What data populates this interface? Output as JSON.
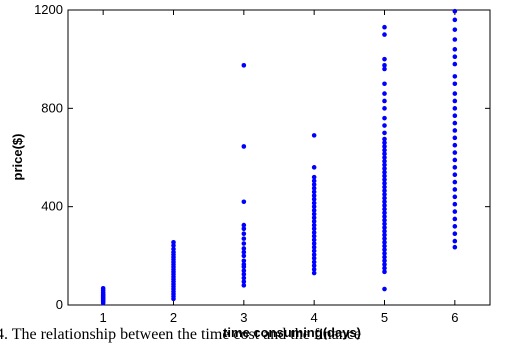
{
  "chart_data": {
    "type": "scatter",
    "xlabel": "time consuming(days)",
    "ylabel": "price($)",
    "xlim": [
      0.5,
      6.5
    ],
    "ylim": [
      0,
      1200
    ],
    "xticks": [
      1,
      2,
      3,
      4,
      5,
      6
    ],
    "yticks": [
      0,
      400,
      800,
      1200
    ],
    "grid": false,
    "color": "#0000ff",
    "series": [
      {
        "points": [
          [
            1,
            8
          ],
          [
            1,
            14
          ],
          [
            1,
            20
          ],
          [
            1,
            25
          ],
          [
            1,
            30
          ],
          [
            1,
            35
          ],
          [
            1,
            40
          ],
          [
            1,
            45
          ],
          [
            1,
            52
          ],
          [
            1,
            60
          ],
          [
            1,
            68
          ],
          [
            2,
            25
          ],
          [
            2,
            35
          ],
          [
            2,
            45
          ],
          [
            2,
            55
          ],
          [
            2,
            65
          ],
          [
            2,
            75
          ],
          [
            2,
            85
          ],
          [
            2,
            95
          ],
          [
            2,
            105
          ],
          [
            2,
            115
          ],
          [
            2,
            125
          ],
          [
            2,
            135
          ],
          [
            2,
            145
          ],
          [
            2,
            155
          ],
          [
            2,
            165
          ],
          [
            2,
            175
          ],
          [
            2,
            185
          ],
          [
            2,
            195
          ],
          [
            2,
            205
          ],
          [
            2,
            215
          ],
          [
            2,
            228
          ],
          [
            2,
            242
          ],
          [
            2,
            255
          ],
          [
            3,
            80
          ],
          [
            3,
            95
          ],
          [
            3,
            110
          ],
          [
            3,
            125
          ],
          [
            3,
            140
          ],
          [
            3,
            155
          ],
          [
            3,
            165
          ],
          [
            3,
            180
          ],
          [
            3,
            200
          ],
          [
            3,
            215
          ],
          [
            3,
            230
          ],
          [
            3,
            250
          ],
          [
            3,
            270
          ],
          [
            3,
            290
          ],
          [
            3,
            310
          ],
          [
            3,
            325
          ],
          [
            3,
            420
          ],
          [
            3,
            645
          ],
          [
            3,
            975
          ],
          [
            4,
            130
          ],
          [
            4,
            145
          ],
          [
            4,
            160
          ],
          [
            4,
            175
          ],
          [
            4,
            190
          ],
          [
            4,
            205
          ],
          [
            4,
            220
          ],
          [
            4,
            235
          ],
          [
            4,
            250
          ],
          [
            4,
            265
          ],
          [
            4,
            280
          ],
          [
            4,
            295
          ],
          [
            4,
            310
          ],
          [
            4,
            325
          ],
          [
            4,
            340
          ],
          [
            4,
            355
          ],
          [
            4,
            370
          ],
          [
            4,
            385
          ],
          [
            4,
            400
          ],
          [
            4,
            415
          ],
          [
            4,
            430
          ],
          [
            4,
            445
          ],
          [
            4,
            460
          ],
          [
            4,
            475
          ],
          [
            4,
            490
          ],
          [
            4,
            505
          ],
          [
            4,
            520
          ],
          [
            4,
            560
          ],
          [
            4,
            690
          ],
          [
            5,
            65
          ],
          [
            5,
            135
          ],
          [
            5,
            150
          ],
          [
            5,
            165
          ],
          [
            5,
            180
          ],
          [
            5,
            195
          ],
          [
            5,
            210
          ],
          [
            5,
            225
          ],
          [
            5,
            240
          ],
          [
            5,
            255
          ],
          [
            5,
            270
          ],
          [
            5,
            285
          ],
          [
            5,
            300
          ],
          [
            5,
            315
          ],
          [
            5,
            330
          ],
          [
            5,
            345
          ],
          [
            5,
            360
          ],
          [
            5,
            375
          ],
          [
            5,
            390
          ],
          [
            5,
            405
          ],
          [
            5,
            420
          ],
          [
            5,
            435
          ],
          [
            5,
            450
          ],
          [
            5,
            465
          ],
          [
            5,
            480
          ],
          [
            5,
            495
          ],
          [
            5,
            510
          ],
          [
            5,
            525
          ],
          [
            5,
            540
          ],
          [
            5,
            555
          ],
          [
            5,
            570
          ],
          [
            5,
            585
          ],
          [
            5,
            600
          ],
          [
            5,
            615
          ],
          [
            5,
            630
          ],
          [
            5,
            645
          ],
          [
            5,
            660
          ],
          [
            5,
            675
          ],
          [
            5,
            700
          ],
          [
            5,
            730
          ],
          [
            5,
            760
          ],
          [
            5,
            800
          ],
          [
            5,
            830
          ],
          [
            5,
            860
          ],
          [
            5,
            900
          ],
          [
            5,
            960
          ],
          [
            5,
            975
          ],
          [
            5,
            1000
          ],
          [
            5,
            1100
          ],
          [
            5,
            1130
          ],
          [
            6,
            235
          ],
          [
            6,
            260
          ],
          [
            6,
            290
          ],
          [
            6,
            320
          ],
          [
            6,
            350
          ],
          [
            6,
            380
          ],
          [
            6,
            410
          ],
          [
            6,
            440
          ],
          [
            6,
            470
          ],
          [
            6,
            500
          ],
          [
            6,
            530
          ],
          [
            6,
            560
          ],
          [
            6,
            590
          ],
          [
            6,
            620
          ],
          [
            6,
            650
          ],
          [
            6,
            680
          ],
          [
            6,
            710
          ],
          [
            6,
            740
          ],
          [
            6,
            770
          ],
          [
            6,
            800
          ],
          [
            6,
            830
          ],
          [
            6,
            860
          ],
          [
            6,
            900
          ],
          [
            6,
            930
          ],
          [
            6,
            980
          ],
          [
            6,
            1010
          ],
          [
            6,
            1040
          ],
          [
            6,
            1080
          ],
          [
            6,
            1120
          ],
          [
            6,
            1160
          ],
          [
            6,
            1195
          ]
        ]
      }
    ]
  },
  "caption": "4.   The relationship between the time cost and the finance"
}
